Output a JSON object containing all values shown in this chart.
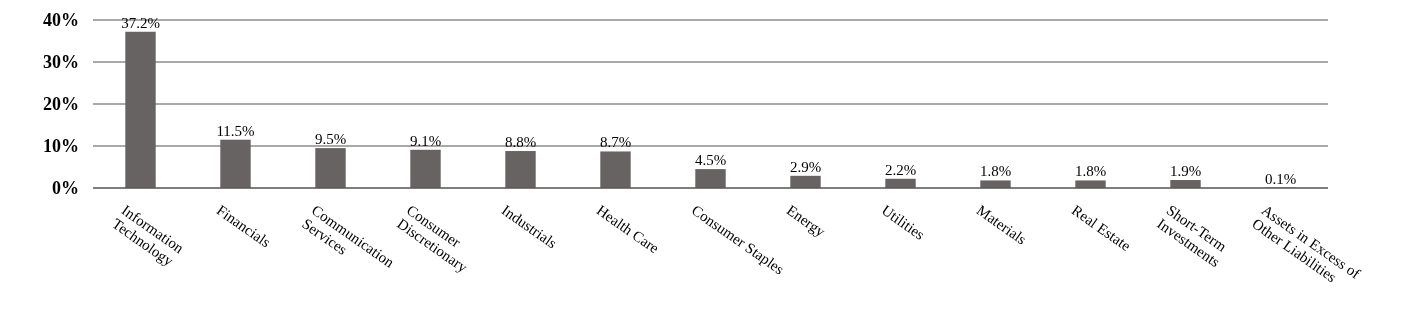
{
  "chart_data": {
    "type": "bar",
    "categories": [
      "Information Technology",
      "Financials",
      "Communication Services",
      "Consumer Discretionary",
      "Industrials",
      "Health Care",
      "Consumer Staples",
      "Energy",
      "Utilities",
      "Materials",
      "Real Estate",
      "Short-Term Investments",
      "Assets in Excess of Other Liabilities"
    ],
    "values": [
      37.2,
      11.5,
      9.5,
      9.1,
      8.8,
      8.7,
      4.5,
      2.9,
      2.2,
      1.8,
      1.8,
      1.9,
      0.1
    ],
    "value_labels": [
      "37.2%",
      "11.5%",
      "9.5%",
      "9.1%",
      "8.8%",
      "8.7%",
      "4.5%",
      "2.9%",
      "2.2%",
      "1.8%",
      "1.8%",
      "1.9%",
      "0.1%"
    ],
    "color": "#686363",
    "ylim": [
      0,
      40
    ],
    "yticks": [
      {
        "value": 0,
        "label": "0%"
      },
      {
        "value": 10,
        "label": "10%"
      },
      {
        "value": 20,
        "label": "20%"
      },
      {
        "value": 30,
        "label": "30%"
      },
      {
        "value": 40,
        "label": "40%"
      }
    ],
    "grid": "y"
  }
}
